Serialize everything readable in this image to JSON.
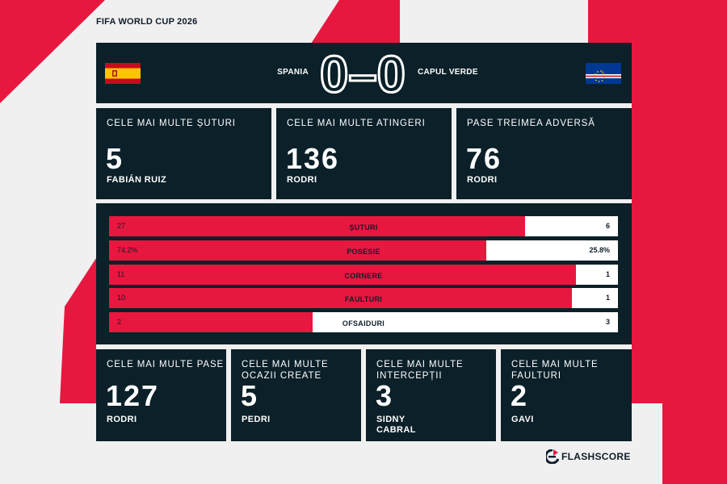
{
  "header": {
    "tournament": "FIFA WORLD CUP 2026",
    "home_team": "SPANIA",
    "away_team": "CAPUL VERDE",
    "score": "0–0",
    "home_flag": "spain-flag",
    "away_flag": "cape-verde-flag"
  },
  "top_cards": [
    {
      "label": "CELE MAI MULTE ȘUTURI",
      "value": "5",
      "player": "FABIÁN RUIZ"
    },
    {
      "label": "CELE MAI MULTE ATINGERI",
      "value": "136",
      "player": "RODRI"
    },
    {
      "label": "PASE TREIMEA ADVERSĂ",
      "value": "76",
      "player": "RODRI"
    }
  ],
  "stats": [
    {
      "label": "ȘUTURI",
      "home": "27",
      "away": "6",
      "home_share": 0.818
    },
    {
      "label": "POSESIE",
      "home": "74.2%",
      "away": "25.8%",
      "home_share": 0.742
    },
    {
      "label": "CORNERE",
      "home": "11",
      "away": "1",
      "home_share": 0.917
    },
    {
      "label": "FAULTURI",
      "home": "10",
      "away": "1",
      "home_share": 0.909
    },
    {
      "label": "OFSAIDURI",
      "home": "2",
      "away": "3",
      "home_share": 0.4
    }
  ],
  "bottom_cards": [
    {
      "label_1": "CELE MAI MULTE PASE",
      "label_2": "",
      "value": "127",
      "player_1": "RODRI",
      "player_2": ""
    },
    {
      "label_1": "CELE MAI MULTE",
      "label_2": "OCAZII CREATE",
      "value": "5",
      "player_1": "PEDRI",
      "player_2": ""
    },
    {
      "label_1": "CELE MAI MULTE",
      "label_2": "INTERCEPȚII",
      "value": "3",
      "player_1": "SIDNY",
      "player_2": "CABRAL"
    },
    {
      "label_1": "CELE MAI MULTE",
      "label_2": "FAULTURI",
      "value": "2",
      "player_1": "GAVI",
      "player_2": ""
    }
  ],
  "brand": {
    "name": "FLASHSCORE",
    "icon": "flashscore-logo-icon"
  },
  "colors": {
    "accent": "#e8173f",
    "panel": "#0b2029",
    "background": "#f0f0f1",
    "text_dark": "#0f1e2a"
  }
}
